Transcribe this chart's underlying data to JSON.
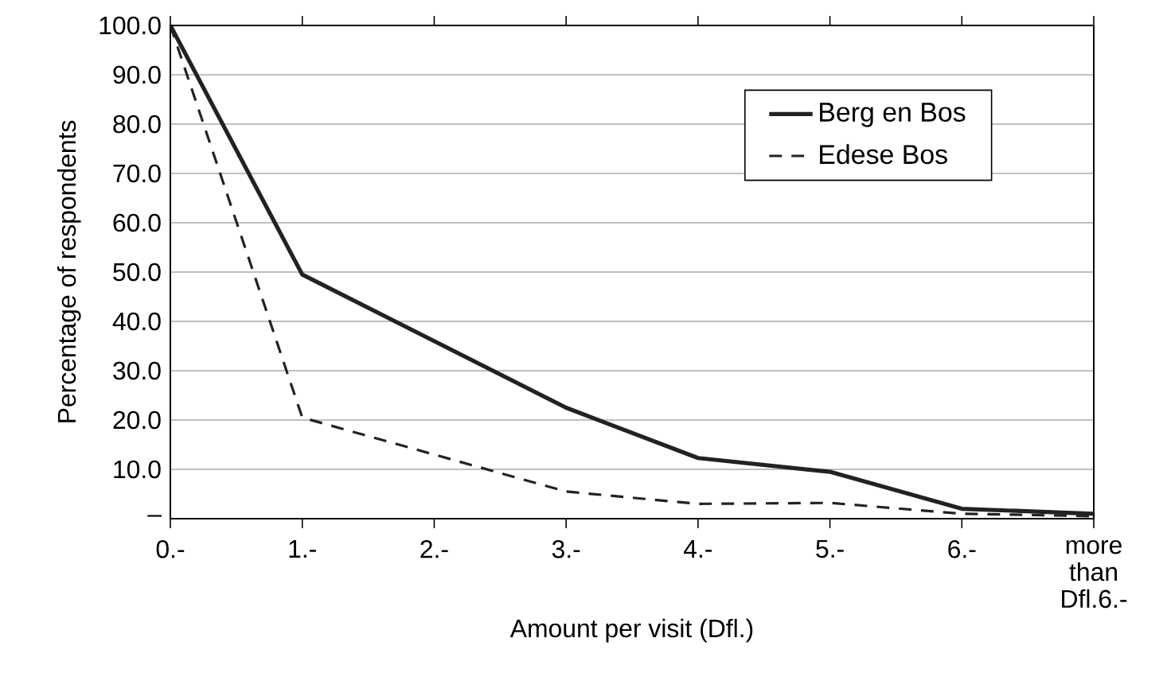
{
  "chart_data": {
    "type": "line",
    "xlabel": "Amount per visit (Dfl.)",
    "ylabel": "Percentage of respondents",
    "categories": [
      "0.-",
      "1.-",
      "2.-",
      "3.-",
      "4.-",
      "5.-",
      "6.-",
      "more than Dfl.6.-"
    ],
    "series": [
      {
        "name": "Berg en Bos",
        "color": "#222222",
        "line_style": "solid",
        "values": [
          100,
          49.5,
          36,
          22.5,
          12.3,
          9.5,
          2,
          1
        ]
      },
      {
        "name": "Edese Bos",
        "color": "#222222",
        "line_style": "dashed",
        "values": [
          100,
          20.5,
          13,
          5.5,
          3,
          3.2,
          1,
          0.5
        ]
      }
    ],
    "ylim": [
      0,
      100
    ],
    "yticks": [
      {
        "value": 0,
        "label": "–"
      },
      {
        "value": 10,
        "label": "10.0"
      },
      {
        "value": 20,
        "label": "20.0"
      },
      {
        "value": 30,
        "label": "30.0"
      },
      {
        "value": 40,
        "label": "40.0"
      },
      {
        "value": 50,
        "label": "50.0"
      },
      {
        "value": 60,
        "label": "60.0"
      },
      {
        "value": 70,
        "label": "70.0"
      },
      {
        "value": 80,
        "label": "80.0"
      },
      {
        "value": 90,
        "label": "90.0"
      },
      {
        "value": 100,
        "label": "100.0"
      }
    ],
    "grid": "y",
    "legend": "top right",
    "marker": "none"
  }
}
